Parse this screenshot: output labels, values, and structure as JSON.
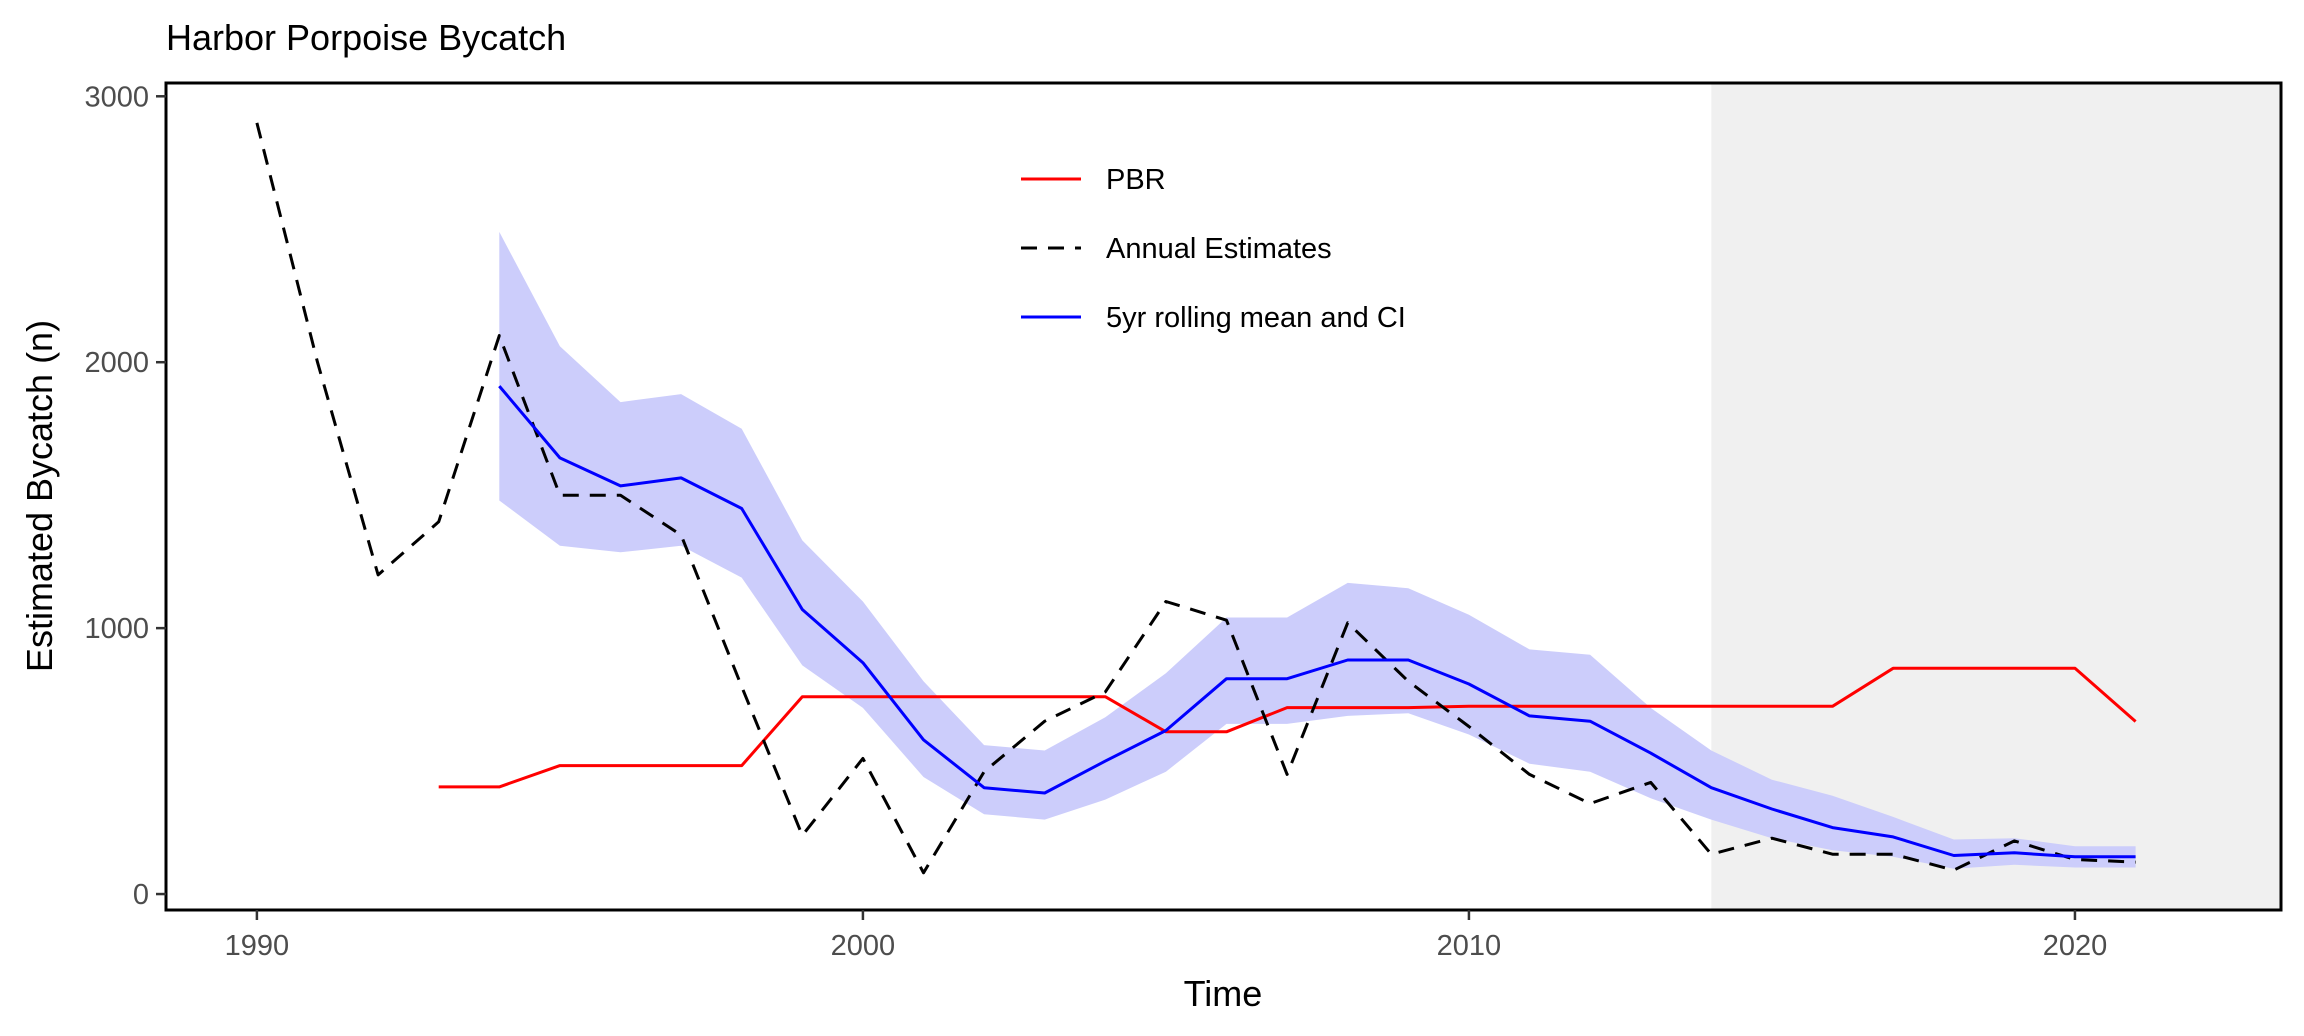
{
  "chart_data": {
    "type": "line",
    "title": "Harbor Porpoise Bycatch",
    "xlabel": "Time",
    "ylabel": "Estimated Bycatch (n)",
    "xlim": [
      1988.5,
      2023.4
    ],
    "ylim": [
      -60,
      3050
    ],
    "x_ticks": [
      1990,
      2000,
      2010,
      2020
    ],
    "y_ticks": [
      0,
      1000,
      2000,
      3000
    ],
    "x_tick_labels": [
      "1990",
      "2000",
      "2010",
      "2020"
    ],
    "y_tick_labels": [
      "0",
      "1000",
      "2000",
      "3000"
    ],
    "grid": false,
    "legend_position": "top-center",
    "shaded_region": {
      "x_start": 2014,
      "x_end": 2023.4,
      "color": "#f0f0f0"
    },
    "series": [
      {
        "name": "PBR",
        "color": "#ff0000",
        "style": "solid",
        "x": [
          1993,
          1994,
          1995,
          1996,
          1997,
          1998,
          1999,
          2000,
          2001,
          2002,
          2003,
          2004,
          2005,
          2006,
          2007,
          2008,
          2009,
          2010,
          2011,
          2012,
          2013,
          2014,
          2015,
          2016,
          2017,
          2018,
          2019,
          2020,
          2021
        ],
        "values": [
          403,
          403,
          483,
          483,
          483,
          483,
          742,
          742,
          742,
          742,
          742,
          742,
          610,
          610,
          701,
          701,
          701,
          706,
          706,
          706,
          706,
          706,
          706,
          706,
          849,
          849,
          849,
          849,
          649
        ]
      },
      {
        "name": "Annual Estimates",
        "color": "#000000",
        "style": "dashed",
        "x": [
          1990,
          1991,
          1992,
          1993,
          1994,
          1995,
          1996,
          1997,
          1998,
          1999,
          2000,
          2001,
          2002,
          2003,
          2004,
          2005,
          2006,
          2007,
          2008,
          2009,
          2010,
          2011,
          2012,
          2013,
          2014,
          2015,
          2016,
          2017,
          2018,
          2019,
          2020,
          2021
        ],
        "values": [
          2900,
          2000,
          1200,
          1400,
          2100,
          1500,
          1500,
          1350,
          780,
          220,
          510,
          80,
          460,
          650,
          760,
          1100,
          1030,
          450,
          1020,
          800,
          630,
          450,
          340,
          420,
          150,
          210,
          150,
          150,
          90,
          200,
          130,
          120
        ]
      },
      {
        "name": "5yr rolling mean and CI",
        "color": "#0000ff",
        "style": "solid",
        "ci_color": "#cccdfb",
        "x": [
          1994,
          1995,
          1996,
          1997,
          1998,
          1999,
          2000,
          2001,
          2002,
          2003,
          2004,
          2005,
          2006,
          2007,
          2008,
          2009,
          2010,
          2011,
          2012,
          2013,
          2014,
          2015,
          2016,
          2017,
          2018,
          2019,
          2020,
          2021
        ],
        "values": [
          1910,
          1640,
          1535,
          1565,
          1450,
          1070,
          870,
          580,
          400,
          380,
          500,
          615,
          810,
          810,
          880,
          880,
          790,
          670,
          650,
          530,
          400,
          320,
          250,
          215,
          145,
          155,
          140,
          140
        ],
        "lower": [
          1480,
          1310,
          1285,
          1310,
          1190,
          860,
          700,
          440,
          300,
          280,
          355,
          460,
          640,
          640,
          670,
          680,
          600,
          490,
          460,
          360,
          280,
          210,
          165,
          140,
          95,
          110,
          100,
          100
        ],
        "upper": [
          2490,
          2060,
          1850,
          1880,
          1750,
          1330,
          1100,
          800,
          560,
          540,
          665,
          830,
          1040,
          1040,
          1170,
          1150,
          1050,
          920,
          900,
          700,
          540,
          430,
          370,
          290,
          205,
          210,
          180,
          180
        ]
      }
    ]
  }
}
